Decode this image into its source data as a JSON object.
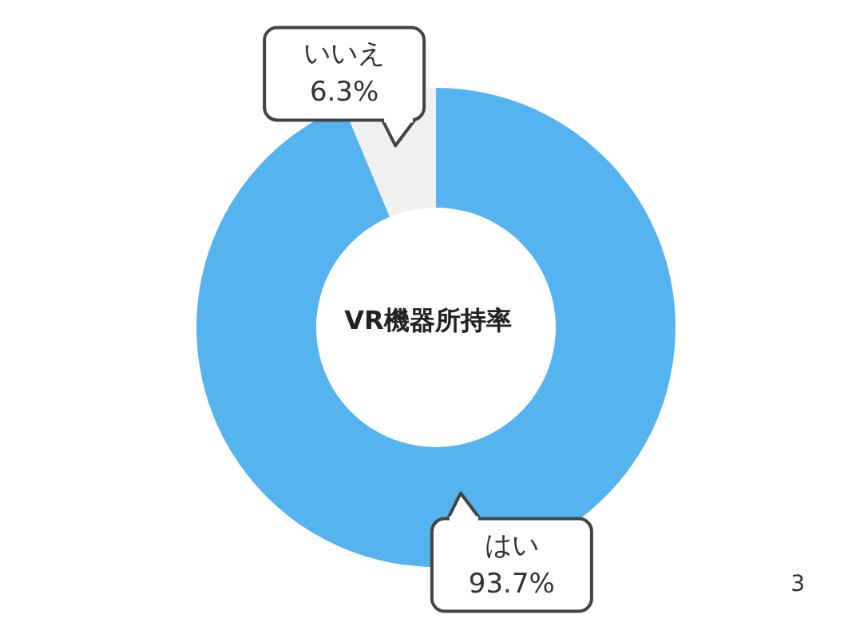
{
  "chart_data": {
    "type": "donut",
    "title": "VR機器所持率",
    "categories": [
      "はい",
      "いいえ"
    ],
    "values": [
      93.7,
      6.3
    ],
    "colors": [
      "#55b4f0",
      "#f0f0f0"
    ],
    "value_labels": [
      "93.7%",
      "6.3%"
    ],
    "annotations": [
      "3"
    ]
  }
}
